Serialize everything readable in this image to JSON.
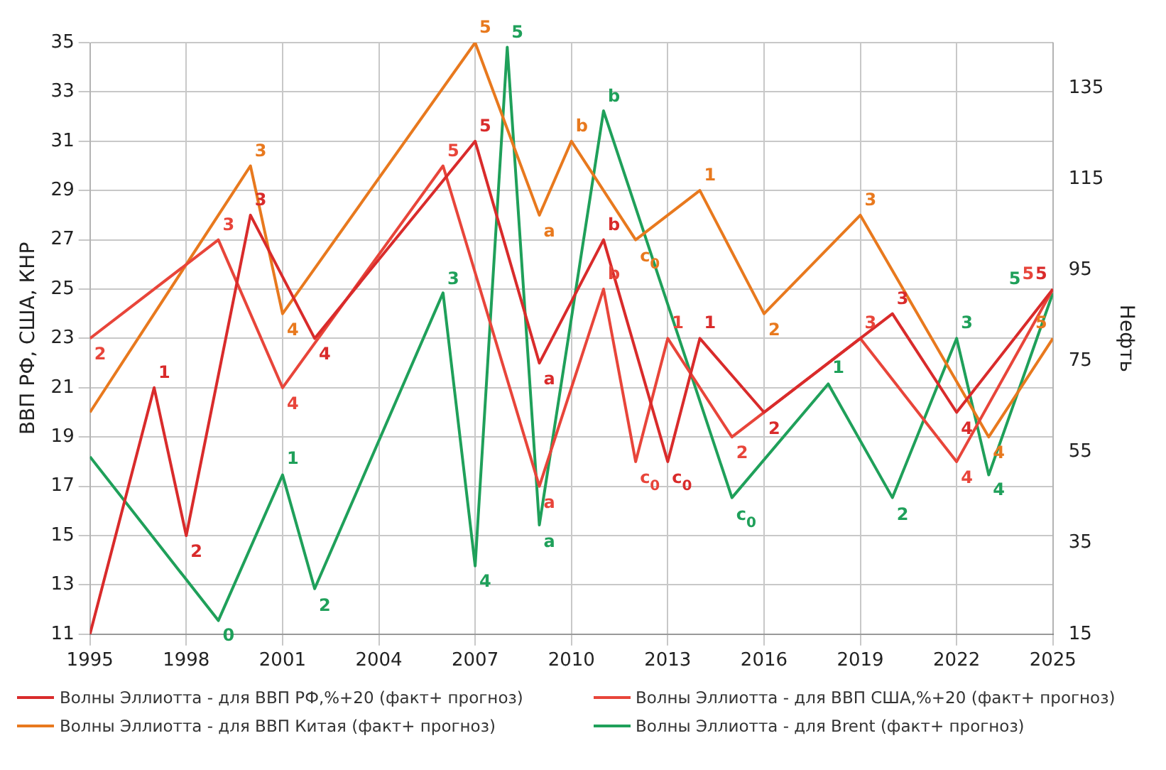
{
  "chart_data": {
    "type": "line",
    "ylabel": "ВВП РФ, США, КНР",
    "y2label": "Нефть",
    "xlim": [
      1995,
      2025
    ],
    "xticks": [
      1995,
      1998,
      2001,
      2004,
      2007,
      2010,
      2013,
      2016,
      2019,
      2022,
      2025
    ],
    "ylim": [
      11,
      35
    ],
    "yticks": [
      11,
      13,
      15,
      17,
      19,
      21,
      23,
      25,
      27,
      29,
      31,
      33,
      35
    ],
    "y2lim": [
      15,
      145
    ],
    "y2ticks": [
      15,
      35,
      55,
      75,
      95,
      115,
      135
    ],
    "grid": true,
    "legend": "bottom",
    "line_style": "solid",
    "series": [
      {
        "name": "Волны Эллиотта - для ВВП РФ,%+20  (факт+ прогноз)",
        "color": "#d92b2b",
        "x": [
          1995,
          1997,
          1998,
          2000,
          2002,
          2007,
          2009,
          2011,
          2013,
          2014,
          2016,
          2020,
          2022,
          2025
        ],
        "values": [
          11,
          21,
          15,
          28,
          23,
          31,
          22,
          27,
          18,
          23,
          20,
          24,
          20,
          25
        ]
      },
      {
        "name": "Волны Эллиотта - для ВВП США,%+20 (факт+ прогноз)",
        "color": "#e8453a",
        "x": [
          1995,
          1999,
          2001,
          2006,
          2009,
          2011,
          2012,
          2013,
          2015,
          2019,
          2022,
          2025
        ],
        "values": [
          23,
          27,
          21,
          30,
          17,
          25,
          18,
          23,
          19,
          23,
          18,
          25
        ]
      },
      {
        "name": "Волны Эллиотта - для ВВП Китая (факт+ прогноз)",
        "color": "#e8791e",
        "x": [
          1995,
          2000,
          2001,
          2007,
          2009,
          2010,
          2012,
          2014,
          2016,
          2019,
          2023,
          2025
        ],
        "values": [
          20,
          30,
          24,
          35,
          28,
          31,
          27,
          29,
          24,
          28,
          19,
          23
        ]
      },
      {
        "name": "Волны Эллиотта - для Brent (факт+ прогноз)",
        "color": "#1fa05a",
        "axis": "y2",
        "x": [
          1995,
          1999,
          2001,
          2002,
          2006,
          2007,
          2008,
          2009,
          2011,
          2015,
          2018,
          2020,
          2022,
          2023,
          2025
        ],
        "values": [
          54,
          18,
          50,
          25,
          90,
          30,
          144,
          39,
          130,
          45,
          70,
          45,
          80,
          50,
          90
        ]
      }
    ],
    "annotations": [
      {
        "text": "1",
        "x": 1997,
        "y": 21
      },
      {
        "text": "2",
        "x": 1998,
        "y": 15
      },
      {
        "text": "3",
        "x": 2000,
        "y": 28
      },
      {
        "text": "4",
        "x": 2002,
        "y": 23
      },
      {
        "text": "5",
        "x": 2007,
        "y": 31
      },
      {
        "text": "a",
        "x": 2009,
        "y": 22
      },
      {
        "text": "b",
        "x": 2011,
        "y": 27
      },
      {
        "text": "c$_{0}$",
        "x": 2013,
        "y": 18
      },
      {
        "text": "1",
        "x": 2014,
        "y": 23
      },
      {
        "text": "2",
        "x": 2016,
        "y": 20
      },
      {
        "text": "3",
        "x": 2020,
        "y": 24
      },
      {
        "text": "4",
        "x": 2022,
        "y": 20
      },
      {
        "text": "5",
        "x": 2025,
        "y": 25
      },
      {
        "text": "2",
        "x": 1995,
        "y": 23
      },
      {
        "text": "3",
        "x": 1999,
        "y": 27
      },
      {
        "text": "4",
        "x": 2001,
        "y": 21
      },
      {
        "text": "5",
        "x": 2006,
        "y": 30
      },
      {
        "text": "a",
        "x": 2009,
        "y": 17
      },
      {
        "text": "b",
        "x": 2011,
        "y": 25
      },
      {
        "text": "c$_{0}$",
        "x": 2012,
        "y": 18
      },
      {
        "text": "1",
        "x": 2013,
        "y": 23
      },
      {
        "text": "2",
        "x": 2015,
        "y": 19
      },
      {
        "text": "3",
        "x": 2019,
        "y": 23
      },
      {
        "text": "4",
        "x": 2022,
        "y": 18
      },
      {
        "text": "5",
        "x": 2025,
        "y": 25
      },
      {
        "text": "3",
        "x": 2000,
        "y": 30
      },
      {
        "text": "4",
        "x": 2001,
        "y": 24
      },
      {
        "text": "5",
        "x": 2007,
        "y": 35
      },
      {
        "text": "a",
        "x": 2009,
        "y": 28
      },
      {
        "text": "b",
        "x": 2010,
        "y": 31
      },
      {
        "text": "c$_{0}$",
        "x": 2012,
        "y": 27
      },
      {
        "text": "1",
        "x": 2014,
        "y": 29
      },
      {
        "text": "2",
        "x": 2016,
        "y": 24
      },
      {
        "text": "3",
        "x": 2019,
        "y": 28
      },
      {
        "text": "4",
        "x": 2023,
        "y": 19
      },
      {
        "text": "5",
        "x": 2025,
        "y": 23
      },
      {
        "text": "0",
        "x": 1999,
        "y": 11.6
      },
      {
        "text": "1",
        "x": 2001,
        "y": 17.5
      },
      {
        "text": "2",
        "x": 2002,
        "y": 12.8
      },
      {
        "text": "3",
        "x": 2006,
        "y": 24.8
      },
      {
        "text": "4",
        "x": 2007,
        "y": 13.8
      },
      {
        "text": "5",
        "x": 2008,
        "y": 34.8
      },
      {
        "text": "a",
        "x": 2009,
        "y": 15.4
      },
      {
        "text": "b",
        "x": 2011,
        "y": 32.2
      },
      {
        "text": "c$_{0}$",
        "x": 2015,
        "y": 16.5
      },
      {
        "text": "1",
        "x": 2018,
        "y": 21.2
      },
      {
        "text": "2",
        "x": 2020,
        "y": 16.5
      },
      {
        "text": "3",
        "x": 2022,
        "y": 23
      },
      {
        "text": "4",
        "x": 2023,
        "y": 17.5
      },
      {
        "text": "5",
        "x": 2025,
        "y": 24.8
      }
    ]
  }
}
